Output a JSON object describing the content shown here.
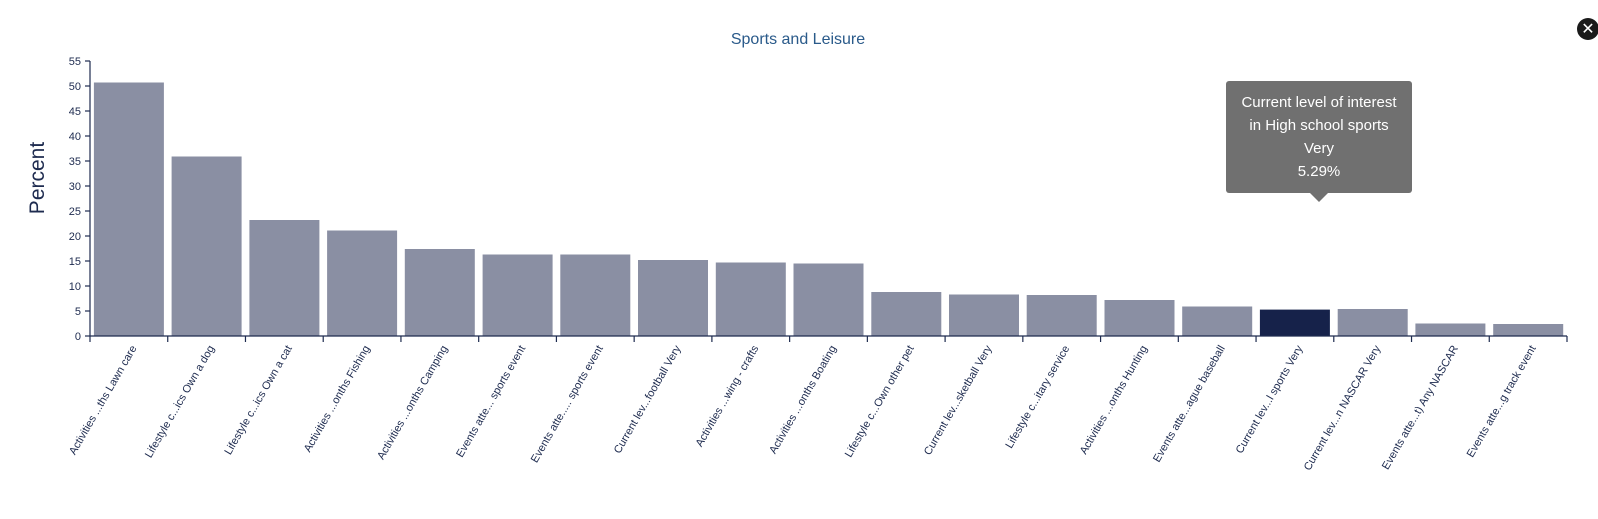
{
  "close_button": {
    "icon": "close-icon",
    "glyph": "✕"
  },
  "tooltip": {
    "label": "Current level of interest in High school sports Very",
    "value": "5.29%"
  },
  "colors": {
    "bar": "#8a8fa3",
    "bar_highlight": "#16224a"
  },
  "chart_data": {
    "type": "bar",
    "title": "Sports and Leisure",
    "ylabel": "Percent",
    "xlabel": "",
    "ylim": [
      0,
      55
    ],
    "yticks": [
      0,
      5,
      10,
      15,
      20,
      25,
      30,
      35,
      40,
      45,
      50,
      55
    ],
    "categories": [
      "Activities ...ths Lawn care",
      "Lifestyle c...ics Own a dog",
      "Lifestyle c...ics Own a cat",
      "Activities ...onths Fishing",
      "Activities ...onths Camping",
      "Events atte... sports event",
      "Events atte..... sports event",
      "Current lev...football Very",
      "Activities ...wing - crafts",
      "Activities ...onths Boating",
      "Lifestyle c...Own other pet",
      "Current lev...sketball Very",
      "Lifestyle c...itary service",
      "Activities ...onths Hunting",
      "Events atte...ague baseball",
      "Current lev...l sports Very",
      "Current lev...n NASCAR Very",
      "Events atte...t) Any NASCAR",
      "Events atte...g track event"
    ],
    "values": [
      50.7,
      35.9,
      23.2,
      21.1,
      17.4,
      16.3,
      16.3,
      15.2,
      14.7,
      14.5,
      8.8,
      8.3,
      8.2,
      7.2,
      5.9,
      5.29,
      5.4,
      2.5,
      2.4
    ],
    "highlighted_index": 15,
    "grid": false,
    "legend": "none"
  }
}
